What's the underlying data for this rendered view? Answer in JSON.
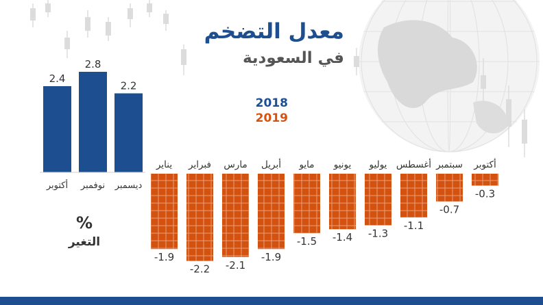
{
  "title": "معدل التضخم",
  "subtitle": "في السعودية",
  "legend": {
    "year_2018": "2018",
    "year_2019": "2019"
  },
  "unit": {
    "symbol": "%",
    "label": "التغير"
  },
  "colors": {
    "series_2018": "#1d4e8f",
    "series_2019": "#d4520f",
    "title": "#1d4e8f",
    "bottom_strip": "#1d4e8f"
  },
  "chart_data": {
    "type": "bar",
    "series": [
      {
        "name": "2018",
        "categories": [
          "أكتوبر",
          "نوفمبر",
          "ديسمبر"
        ],
        "values": [
          2.4,
          2.8,
          2.2
        ],
        "value_labels": [
          "2.4",
          "2.8",
          "2.2"
        ]
      },
      {
        "name": "2019",
        "categories": [
          "يناير",
          "فبراير",
          "مارس",
          "أبريل",
          "مايو",
          "يونيو",
          "يوليو",
          "أغسطس",
          "سبتمبر",
          "أكتوبر"
        ],
        "values": [
          -1.9,
          -2.2,
          -2.1,
          -1.9,
          -1.5,
          -1.4,
          -1.3,
          -1.1,
          -0.7,
          -0.3
        ],
        "value_labels": [
          "-1.9",
          "-2.2",
          "-2.1",
          "-1.9",
          "-1.5",
          "-1.4",
          "-1.3",
          "-1.1",
          "-0.7",
          "-0.3"
        ]
      }
    ],
    "ylim": [
      -2.3,
      2.9
    ],
    "grid": false
  }
}
